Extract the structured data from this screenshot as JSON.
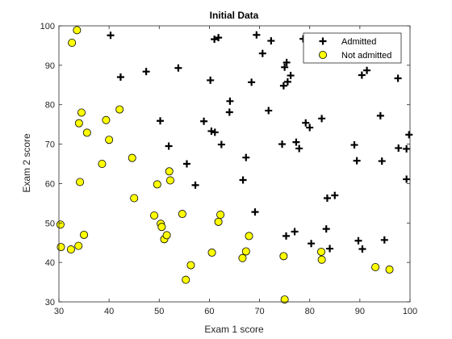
{
  "chart_data": {
    "type": "scatter",
    "title": "Initial Data",
    "xlabel": "Exam 1 score",
    "ylabel": "Exam 2 score",
    "xlim": [
      30,
      100
    ],
    "ylim": [
      30,
      100
    ],
    "xticks": [
      "30",
      "40",
      "50",
      "60",
      "70",
      "80",
      "90",
      "100"
    ],
    "yticks": [
      "30",
      "40",
      "50",
      "60",
      "70",
      "80",
      "90",
      "100"
    ],
    "grid": false,
    "legend_position": "top-right",
    "series": [
      {
        "name": "Admitted",
        "marker": "plus",
        "color": "#000000",
        "points": [
          [
            40.3,
            97.6
          ],
          [
            42.3,
            87.0
          ],
          [
            47.4,
            88.4
          ],
          [
            50.2,
            75.9
          ],
          [
            51.9,
            69.5
          ],
          [
            53.8,
            89.3
          ],
          [
            55.5,
            65.0
          ],
          [
            57.2,
            59.6
          ],
          [
            58.9,
            75.8
          ],
          [
            60.2,
            86.2
          ],
          [
            60.4,
            73.3
          ],
          [
            61.1,
            73.0
          ],
          [
            61.0,
            96.6
          ],
          [
            61.8,
            97.0
          ],
          [
            62.4,
            69.9
          ],
          [
            64.0,
            78.1
          ],
          [
            64.1,
            80.9
          ],
          [
            66.7,
            60.9
          ],
          [
            67.3,
            66.6
          ],
          [
            68.4,
            85.7
          ],
          [
            69.1,
            52.8
          ],
          [
            69.4,
            97.7
          ],
          [
            70.6,
            93.0
          ],
          [
            71.8,
            78.5
          ],
          [
            72.3,
            96.2
          ],
          [
            74.5,
            70.0
          ],
          [
            74.8,
            84.8
          ],
          [
            75.0,
            89.5
          ],
          [
            75.3,
            46.7
          ],
          [
            75.4,
            90.7
          ],
          [
            75.6,
            85.8
          ],
          [
            76.2,
            87.4
          ],
          [
            77.0,
            47.8
          ],
          [
            77.3,
            70.5
          ],
          [
            77.9,
            68.9
          ],
          [
            78.7,
            96.7
          ],
          [
            79.2,
            75.4
          ],
          [
            80.0,
            74.2
          ],
          [
            80.3,
            44.8
          ],
          [
            82.4,
            76.5
          ],
          [
            83.3,
            48.5
          ],
          [
            83.5,
            56.3
          ],
          [
            84.0,
            43.5
          ],
          [
            85.0,
            57.0
          ],
          [
            88.9,
            69.8
          ],
          [
            89.4,
            65.8
          ],
          [
            89.7,
            45.5
          ],
          [
            90.4,
            87.5
          ],
          [
            90.5,
            43.4
          ],
          [
            91.4,
            88.7
          ],
          [
            94.1,
            77.2
          ],
          [
            94.4,
            65.7
          ],
          [
            94.9,
            45.7
          ],
          [
            97.6,
            86.7
          ],
          [
            97.7,
            69.0
          ],
          [
            99.3,
            61.1
          ],
          [
            99.3,
            68.8
          ],
          [
            99.8,
            72.4
          ]
        ]
      },
      {
        "name": "Not admitted",
        "marker": "circle",
        "color": "#ffff00",
        "points": [
          [
            30.3,
            49.6
          ],
          [
            30.4,
            43.9
          ],
          [
            32.4,
            43.3
          ],
          [
            32.6,
            95.7
          ],
          [
            33.6,
            98.9
          ],
          [
            33.9,
            44.2
          ],
          [
            34.0,
            75.3
          ],
          [
            34.2,
            60.4
          ],
          [
            34.5,
            78.0
          ],
          [
            35.0,
            47.0
          ],
          [
            35.6,
            72.9
          ],
          [
            38.6,
            65.0
          ],
          [
            39.4,
            76.1
          ],
          [
            40.0,
            71.1
          ],
          [
            42.1,
            78.8
          ],
          [
            44.6,
            66.5
          ],
          [
            45.0,
            56.3
          ],
          [
            49.0,
            51.9
          ],
          [
            49.6,
            59.8
          ],
          [
            50.3,
            49.8
          ],
          [
            50.5,
            49.0
          ],
          [
            51.0,
            45.9
          ],
          [
            51.5,
            46.9
          ],
          [
            52.0,
            63.1
          ],
          [
            52.2,
            60.8
          ],
          [
            54.6,
            52.3
          ],
          [
            55.3,
            35.6
          ],
          [
            56.3,
            39.3
          ],
          [
            60.5,
            42.5
          ],
          [
            61.8,
            50.3
          ],
          [
            62.2,
            52.1
          ],
          [
            66.6,
            41.1
          ],
          [
            67.3,
            42.8
          ],
          [
            67.9,
            46.7
          ],
          [
            74.8,
            41.6
          ],
          [
            75.0,
            30.6
          ],
          [
            82.3,
            42.7
          ],
          [
            82.4,
            40.7
          ],
          [
            93.1,
            38.8
          ],
          [
            95.9,
            38.2
          ]
        ]
      }
    ]
  }
}
